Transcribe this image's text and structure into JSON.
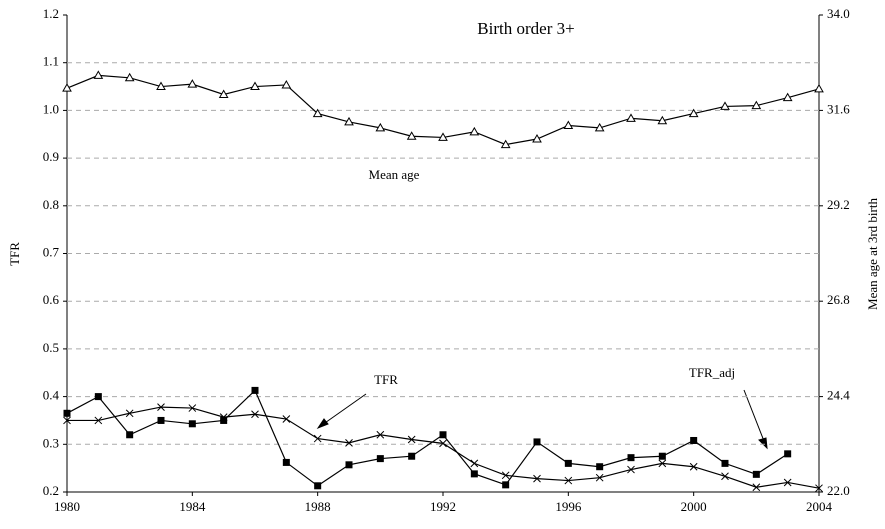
{
  "chart_data": {
    "type": "line",
    "title": "Birth order 3+",
    "ylabel": "TFR",
    "y2label": "Mean age at 3rd birth",
    "x": [
      1980,
      1981,
      1982,
      1983,
      1984,
      1985,
      1986,
      1987,
      1988,
      1989,
      1990,
      1991,
      1992,
      1993,
      1994,
      1995,
      1996,
      1997,
      1998,
      1999,
      2000,
      2001,
      2002,
      2003,
      2004
    ],
    "xlim": [
      1980,
      2004
    ],
    "xticks": [
      1980,
      1984,
      1988,
      1992,
      1996,
      2000,
      2004
    ],
    "ylim": [
      0.2,
      1.2
    ],
    "yticks": [
      0.2,
      0.3,
      0.4,
      0.5,
      0.6,
      0.7,
      0.8,
      0.9,
      {
        "value": 1.0,
        "label": "1.0"
      },
      1.1,
      1.2
    ],
    "y2lim": [
      22,
      34
    ],
    "y2ticks": [
      {
        "value": 22,
        "label": "22.0"
      },
      24.4,
      26.8,
      29.2,
      31.6,
      {
        "value": 34,
        "label": "34.0"
      }
    ],
    "grid": true,
    "series": [
      {
        "name": "TFR",
        "color": "#000000",
        "marker": "square",
        "values": [
          0.365,
          0.4,
          0.32,
          0.35,
          0.343,
          0.35,
          0.413,
          0.262,
          0.213,
          0.257,
          0.27,
          0.275,
          0.32,
          0.238,
          0.215,
          0.305,
          0.26,
          0.253,
          0.272,
          0.275,
          0.308,
          0.26,
          0.237,
          0.28,
          null
        ]
      },
      {
        "name": "TFR_adj",
        "color": "#000000",
        "marker": "x",
        "values": [
          0.35,
          0.35,
          0.365,
          0.378,
          0.376,
          0.357,
          0.363,
          0.353,
          0.312,
          0.303,
          0.32,
          0.31,
          0.302,
          0.26,
          0.235,
          0.228,
          0.224,
          0.23,
          0.247,
          0.26,
          0.253,
          0.233,
          0.21,
          0.22,
          0.208
        ]
      },
      {
        "name": "Mean age",
        "color": "#000000",
        "marker": "triangle",
        "axis": "y2",
        "values": [
          32.16,
          32.48,
          32.42,
          32.2,
          32.26,
          32.0,
          32.2,
          32.24,
          31.52,
          31.31,
          31.16,
          30.95,
          30.92,
          31.06,
          30.74,
          30.88,
          31.22,
          31.16,
          31.4,
          31.34,
          31.52,
          31.7,
          31.72,
          31.92,
          32.14
        ]
      }
    ]
  }
}
